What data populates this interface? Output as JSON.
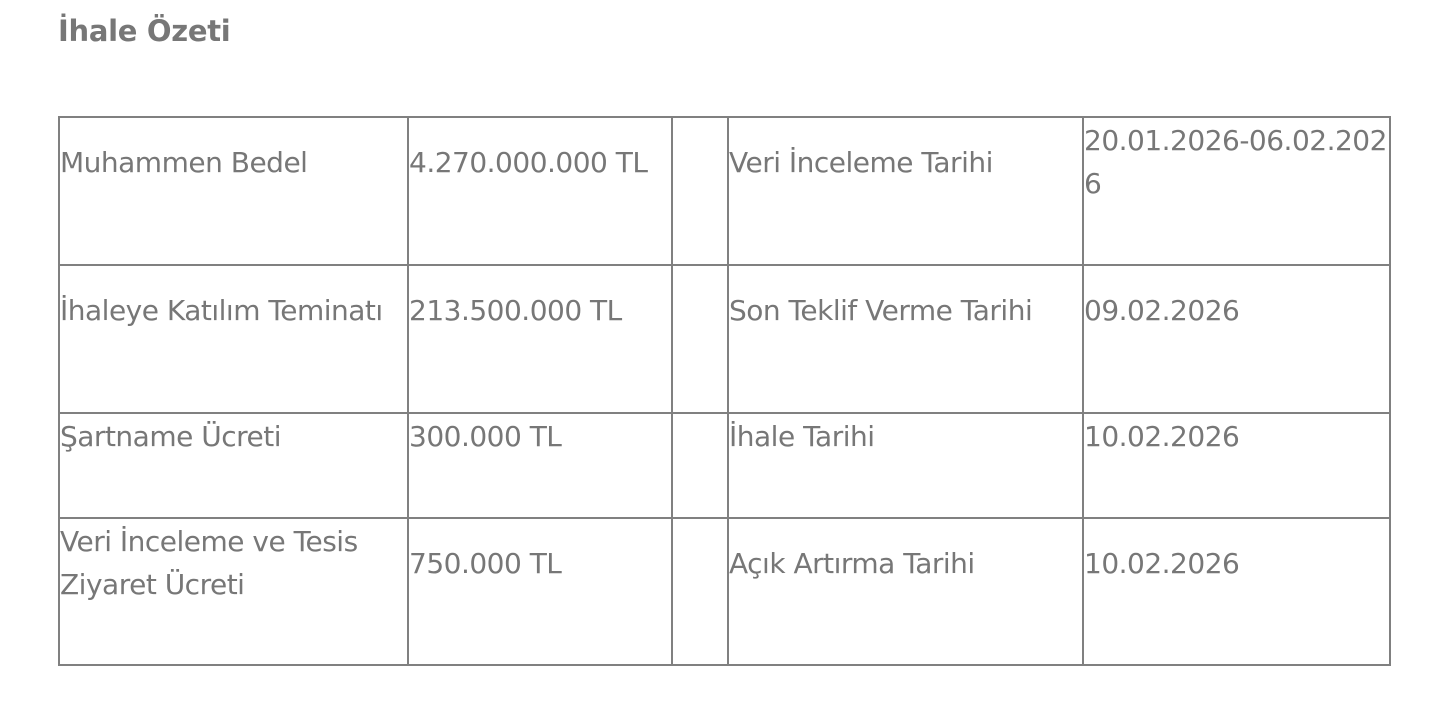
{
  "title": "İhale Özeti",
  "rows": [
    {
      "label1": "Muhammen Bedel",
      "value1": "4.270.000.000 TL",
      "label2": "Veri İnceleme Tarihi",
      "value2": "20.01.2026-06.02.2026"
    },
    {
      "label1": "İhaleye Katılım Teminatı",
      "value1": "213.500.000 TL",
      "label2": "Son Teklif Verme Tarihi",
      "value2": "09.02.2026"
    },
    {
      "label1": "Şartname Ücreti",
      "value1": "300.000 TL",
      "label2": "İhale Tarihi",
      "value2": "10.02.2026"
    },
    {
      "label1": "Veri İnceleme ve Tesis Ziyaret Ücreti",
      "value1": "750.000 TL",
      "label2": "Açık Artırma Tarihi",
      "value2": "10.02.2026"
    }
  ]
}
